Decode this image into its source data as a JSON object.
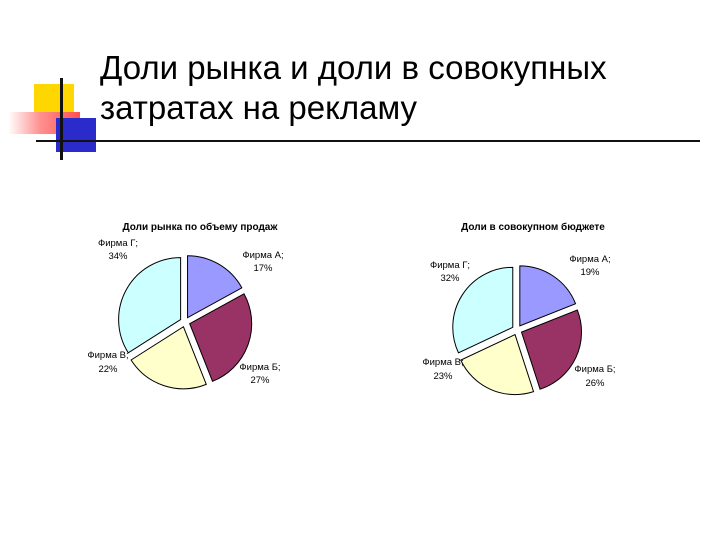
{
  "slide": {
    "title_line1": "Доли рынка и доли в совокупных",
    "title_line2": "затратах на рекламу"
  },
  "colors": {
    "firm_a": "#9999ff",
    "firm_b": "#993366",
    "firm_v": "#ffffcc",
    "firm_g": "#ccffff",
    "deco_yellow": "#ffd700",
    "deco_red": "#ff6d6d",
    "deco_blue": "#2b2bcc"
  },
  "chart_data": [
    {
      "type": "pie",
      "title": "Доли рынка по объему продаж",
      "slices": [
        {
          "label": "Фирма А;",
          "pct": "17%",
          "value": 17,
          "color": "#9999ff"
        },
        {
          "label": "Фирма Б;",
          "pct": "27%",
          "value": 27,
          "color": "#993366"
        },
        {
          "label": "Фирма В;",
          "pct": "22%",
          "value": 22,
          "color": "#ffffcc"
        },
        {
          "label": "Фирма Г;",
          "pct": "34%",
          "value": 34,
          "color": "#ccffff"
        }
      ]
    },
    {
      "type": "pie",
      "title": "Доли в совокупном бюджете",
      "slices": [
        {
          "label": "Фирма А;",
          "pct": "19%",
          "value": 19,
          "color": "#9999ff"
        },
        {
          "label": "Фирма Б;",
          "pct": "26%",
          "value": 26,
          "color": "#993366"
        },
        {
          "label": "Фирма В;",
          "pct": "23%",
          "value": 23,
          "color": "#ffffcc"
        },
        {
          "label": "Фирма Г;",
          "pct": "32%",
          "value": 32,
          "color": "#ccffff"
        }
      ]
    }
  ]
}
